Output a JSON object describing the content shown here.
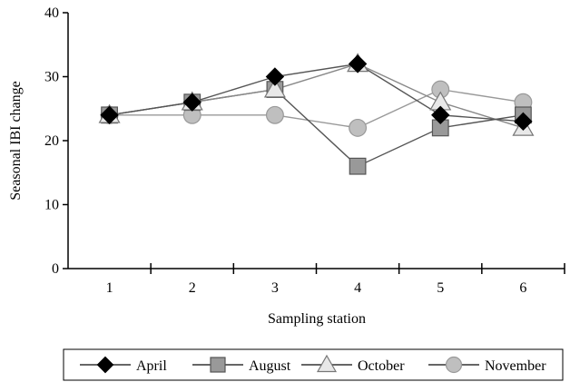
{
  "chart_data": {
    "type": "line",
    "xlabel": "Sampling station",
    "ylabel": "Seasonal IBI change",
    "categories": [
      "1",
      "2",
      "3",
      "4",
      "5",
      "6"
    ],
    "yticks": [
      "0",
      "10",
      "20",
      "30",
      "40"
    ],
    "ylim": [
      0,
      40
    ],
    "grid": false,
    "legend_position": "bottom",
    "series": [
      {
        "name": "April",
        "values": [
          24,
          26,
          30,
          32,
          24,
          23
        ],
        "marker": "diamond",
        "marker_fill": "#000000",
        "line_color": "#555555"
      },
      {
        "name": "August",
        "values": [
          24,
          26,
          28,
          16,
          22,
          24
        ],
        "marker": "square",
        "marker_fill": "#999999",
        "line_color": "#555555"
      },
      {
        "name": "October",
        "values": [
          24,
          26,
          28,
          32,
          26,
          22
        ],
        "marker": "triangle",
        "marker_fill": "#e8e8e8",
        "line_color": "#888888"
      },
      {
        "name": "November",
        "values": [
          24,
          24,
          24,
          22,
          28,
          26
        ],
        "marker": "circle",
        "marker_fill": "#bfbfbf",
        "line_color": "#999999"
      }
    ]
  }
}
